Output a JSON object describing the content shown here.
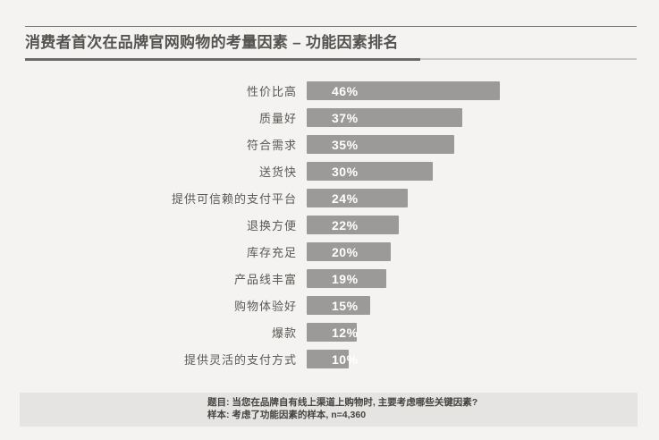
{
  "header": {
    "title": "消费者首次在品牌官网购物的考量因素 – 功能因素排名"
  },
  "chart_data": {
    "type": "bar",
    "orientation": "horizontal",
    "title": "消费者首次在品牌官网购物的考量因素 – 功能因素排名",
    "categories": [
      "性价比高",
      "质量好",
      "符合需求",
      "送货快",
      "提供可信赖的支付平台",
      "退换方便",
      "库存充足",
      "产品线丰富",
      "购物体验好",
      "爆款",
      "提供灵活的支付方式"
    ],
    "values": [
      46,
      37,
      35,
      30,
      24,
      22,
      20,
      19,
      15,
      12,
      10
    ],
    "value_suffix": "%",
    "xlim": [
      0,
      50
    ],
    "grid": false,
    "axis_lines": false,
    "legend": "none",
    "bar_color": "#9b9a98",
    "value_label_position": "inside-left",
    "value_label_color": "#ffffff"
  },
  "footer": {
    "question_line": "题目: 当您在品牌自有线上渠道上购物时, 主要考虑哪些关键因素?",
    "sample_line": "样本: 考虑了功能因素的样本, n=4,360"
  },
  "colors": {
    "background": "#f4f3f1",
    "bar": "#9b9a98",
    "footer_band": "#e5e4e2",
    "title_text": "#55524f",
    "label_text": "#5b5955",
    "rule_dark": "#6b6a67",
    "rule_light": "#c9c8c6",
    "footer_text": "#454440"
  }
}
